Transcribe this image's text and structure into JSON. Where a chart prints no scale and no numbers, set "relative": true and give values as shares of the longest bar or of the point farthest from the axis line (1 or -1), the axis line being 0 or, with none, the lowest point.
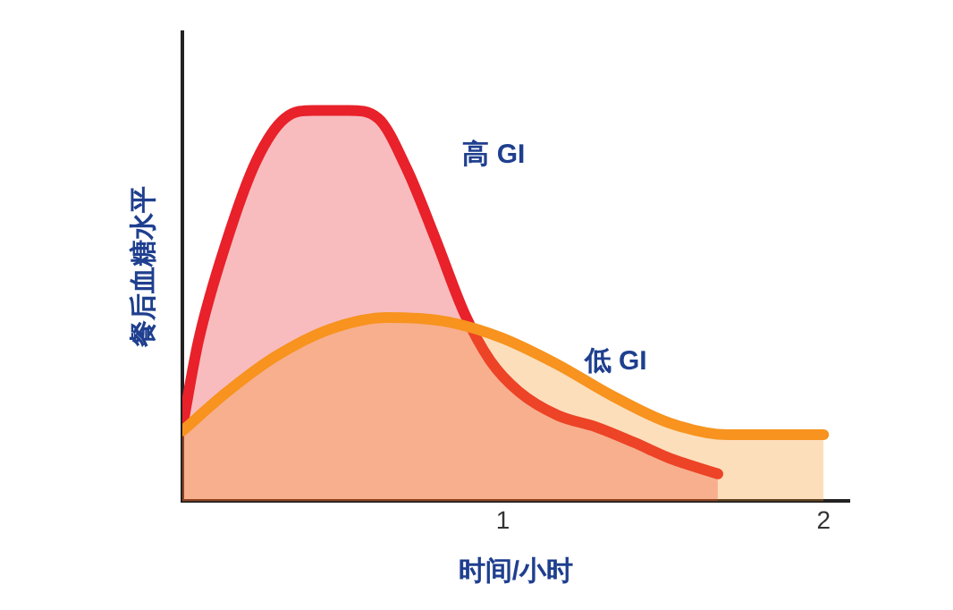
{
  "chart_data": {
    "type": "area",
    "relative": true,
    "xlabel": "时间/小时",
    "ylabel": "餐后血糖水平",
    "xlim": [
      0,
      2.08
    ],
    "xticks": [
      1,
      2
    ],
    "grid": false,
    "legend": false,
    "marker": "none",
    "line_style": "solid",
    "series": [
      {
        "name": "高 GI",
        "color": "#e8212a",
        "x": [
          0,
          0.05,
          0.14,
          0.23,
          0.32,
          0.41,
          0.52,
          0.61,
          0.7,
          0.79,
          0.88,
          0.96,
          1.05,
          1.17,
          1.29,
          1.41,
          1.52,
          1.67
        ],
        "values": [
          0.19,
          0.41,
          0.67,
          0.87,
          0.98,
          1,
          1,
          0.98,
          0.85,
          0.67,
          0.48,
          0.36,
          0.28,
          0.22,
          0.19,
          0.15,
          0.11,
          0.07
        ]
      },
      {
        "name": "低 GI",
        "color": "#f7931e",
        "x": [
          0,
          0.14,
          0.29,
          0.46,
          0.64,
          0.82,
          0.99,
          1.17,
          1.34,
          1.52,
          1.7,
          1.85,
          2.0
        ],
        "values": [
          0.18,
          0.28,
          0.37,
          0.44,
          0.47,
          0.46,
          0.42,
          0.35,
          0.27,
          0.2,
          0.17,
          0.17,
          0.17
        ]
      }
    ]
  }
}
